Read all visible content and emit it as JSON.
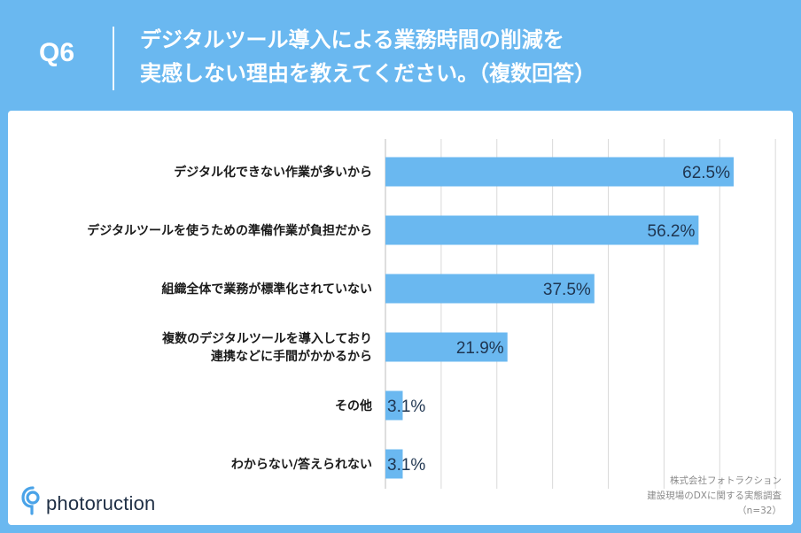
{
  "header": {
    "question": "Q6",
    "title_line1": "デジタルツール導入による業務時間の削減を",
    "title_line2": "実感しない理由を教えてください。（複数回答）"
  },
  "chart_data": {
    "type": "bar",
    "orientation": "horizontal",
    "categories": [
      [
        "デジタル化できない作業が多いから"
      ],
      [
        "デジタルツールを使うための準備作業が負担だから"
      ],
      [
        "組織全体で業務が標準化されていない"
      ],
      [
        "複数のデジタルツールを導入しており",
        "連携などに手間がかかるから"
      ],
      [
        "その他"
      ],
      [
        "わからない/答えられない"
      ]
    ],
    "values": [
      62.5,
      56.2,
      37.5,
      21.9,
      3.1,
      3.1
    ],
    "value_labels": [
      "62.5%",
      "56.2%",
      "37.5%",
      "21.9%",
      "3.1%",
      "3.1%"
    ],
    "xlim": [
      0,
      70
    ],
    "grid": true,
    "bar_color": "#6ab8f0",
    "label_color": "#1f3550"
  },
  "footer": {
    "brand": "photoruction",
    "source_line1": "株式会社フォトラクション",
    "source_line2": "建設現場のDXに関する実態調査",
    "source_line3": "（n=32）"
  },
  "colors": {
    "background": "#6ab8f0",
    "panel": "#ffffff",
    "grid": "#d9d9d9",
    "logo_accent": "#4aa3e8"
  }
}
